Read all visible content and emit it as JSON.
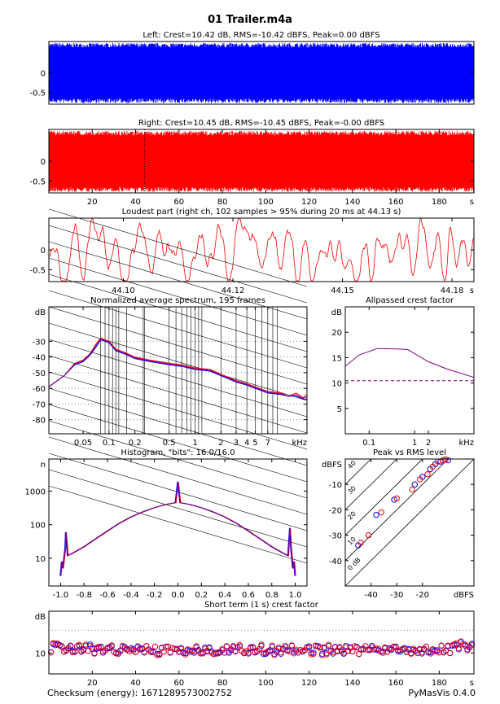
{
  "figure": {
    "title": "01 Trailer.m4a",
    "footer_left": "Checksum (energy): 1671289573002752",
    "footer_right": "PyMasVis 0.4.0"
  },
  "chart_data": [
    {
      "id": "left",
      "type": "area",
      "title": "Left: Crest=10.42 dB, RMS=-10.42 dBFS, Peak=0.00 dBFS",
      "color": "#0000ff",
      "y_ticks": [
        {
          "v": 0,
          "label": "0"
        },
        {
          "v": -0.5,
          "label": "-0.5"
        }
      ],
      "ylim": [
        -0.8,
        0.8
      ],
      "envelope": {
        "upper": 0.76,
        "lower": -0.77
      }
    },
    {
      "id": "right",
      "type": "area",
      "title": "Right: Crest=10.45 dB, RMS=-10.45 dBFS, Peak=-0.00 dBFS",
      "color": "#ff0000",
      "y_ticks": [
        {
          "v": 0,
          "label": "0"
        },
        {
          "v": -0.5,
          "label": "-0.5"
        }
      ],
      "ylim": [
        -0.8,
        0.8
      ],
      "xlim": [
        0,
        196
      ],
      "x_ticks": [
        "20",
        "40",
        "60",
        "80",
        "100",
        "120",
        "140",
        "160",
        "180"
      ],
      "x_tick_values": [
        20,
        40,
        60,
        80,
        100,
        120,
        140,
        160,
        180
      ],
      "x_unit": "s",
      "marker_x": 44.13,
      "envelope": {
        "upper": 0.76,
        "lower": -0.77
      }
    },
    {
      "id": "loudest",
      "type": "line",
      "title": "Loudest part (right ch, 102 samples > 95% during 20 ms at 44.13 s)",
      "color": "#ff0000",
      "y_ticks": [
        {
          "v": 0,
          "label": "0"
        },
        {
          "v": -0.5,
          "label": "-0.5"
        }
      ],
      "ylim": [
        -0.8,
        0.8
      ],
      "xlim": [
        44.083,
        44.18
      ],
      "x_ticks": [
        "44.10",
        "44.12",
        "44.15",
        "44.18"
      ],
      "x_tick_values": [
        44.1,
        44.125,
        44.15,
        44.175
      ],
      "x_unit": "s"
    },
    {
      "id": "spectrum",
      "type": "line",
      "title": "Normalized average spectrum, 195 frames",
      "y_unit": "dB",
      "y_ticks": [
        "-30",
        "-40",
        "-50",
        "-60",
        "-70",
        "-80"
      ],
      "y_tick_values": [
        -30,
        -40,
        -50,
        -60,
        -70,
        -80
      ],
      "ylim": [
        -89,
        -8
      ],
      "xscale": "log",
      "xlim": [
        0.02,
        20
      ],
      "x_ticks": [
        "0.05",
        "0.1",
        "0.2",
        "0.5",
        "1",
        "2",
        "3",
        "4",
        "5",
        "7"
      ],
      "x_tick_values": [
        0.05,
        0.1,
        0.2,
        0.5,
        1,
        2,
        3,
        4,
        5,
        7
      ],
      "x_unit": "kHz",
      "series": [
        {
          "color": "#ff0000",
          "points": [
            [
              0.02,
              -59
            ],
            [
              0.03,
              -52
            ],
            [
              0.04,
              -44
            ],
            [
              0.05,
              -42
            ],
            [
              0.06,
              -38
            ],
            [
              0.07,
              -32
            ],
            [
              0.08,
              -28
            ],
            [
              0.1,
              -30
            ],
            [
              0.12,
              -35
            ],
            [
              0.15,
              -37
            ],
            [
              0.2,
              -40
            ],
            [
              0.3,
              -42
            ],
            [
              0.5,
              -44
            ],
            [
              0.7,
              -45
            ],
            [
              1,
              -47
            ],
            [
              1.5,
              -48
            ],
            [
              2,
              -51
            ],
            [
              3,
              -55
            ],
            [
              4,
              -57
            ],
            [
              5,
              -59
            ],
            [
              7,
              -62
            ],
            [
              10,
              -63
            ],
            [
              12,
              -65
            ],
            [
              15,
              -63
            ],
            [
              18,
              -66
            ],
            [
              20,
              -64
            ]
          ]
        },
        {
          "color": "#0000ff",
          "points": [
            [
              0.02,
              -59
            ],
            [
              0.03,
              -52
            ],
            [
              0.04,
              -45
            ],
            [
              0.05,
              -43
            ],
            [
              0.06,
              -39
            ],
            [
              0.07,
              -34
            ],
            [
              0.08,
              -29
            ],
            [
              0.1,
              -31
            ],
            [
              0.12,
              -36
            ],
            [
              0.15,
              -38
            ],
            [
              0.2,
              -41
            ],
            [
              0.3,
              -43
            ],
            [
              0.5,
              -45
            ],
            [
              0.7,
              -46
            ],
            [
              1,
              -48
            ],
            [
              1.5,
              -49
            ],
            [
              2,
              -52
            ],
            [
              3,
              -56
            ],
            [
              4,
              -58
            ],
            [
              5,
              -60
            ],
            [
              7,
              -63
            ],
            [
              10,
              -64
            ],
            [
              12,
              -65
            ],
            [
              15,
              -65
            ],
            [
              18,
              -67
            ],
            [
              20,
              -67
            ]
          ]
        },
        {
          "color": "#800080",
          "points": [
            [
              0.02,
              -59
            ],
            [
              0.03,
              -52
            ],
            [
              0.04,
              -44.5
            ],
            [
              0.05,
              -42.5
            ],
            [
              0.06,
              -38.5
            ],
            [
              0.07,
              -33
            ],
            [
              0.08,
              -28.5
            ],
            [
              0.1,
              -30.5
            ],
            [
              0.12,
              -35.5
            ],
            [
              0.15,
              -37.5
            ],
            [
              0.2,
              -40.5
            ],
            [
              0.3,
              -42.5
            ],
            [
              0.5,
              -44.5
            ],
            [
              0.7,
              -45.5
            ],
            [
              1,
              -47.5
            ],
            [
              1.5,
              -48.5
            ],
            [
              2,
              -51.5
            ],
            [
              3,
              -55.5
            ],
            [
              4,
              -57.5
            ],
            [
              5,
              -59.5
            ],
            [
              7,
              -62.5
            ],
            [
              10,
              -63.5
            ],
            [
              12,
              -65
            ],
            [
              15,
              -64
            ],
            [
              18,
              -66.5
            ],
            [
              20,
              -65.5
            ]
          ]
        }
      ]
    },
    {
      "id": "allpass",
      "type": "line",
      "title": "Allpassed crest factor",
      "y_unit": "dB",
      "y_ticks": [
        "20",
        "15",
        "10",
        "5"
      ],
      "y_tick_values": [
        20,
        15,
        10,
        5
      ],
      "ylim": [
        0,
        25
      ],
      "xscale": "log",
      "xlim": [
        0.03,
        20
      ],
      "x_ticks": [
        "0.1",
        "1",
        "2"
      ],
      "x_tick_values": [
        0.1,
        1,
        2
      ],
      "x_unit": "kHz",
      "reference": 10.45,
      "series": [
        {
          "color": "#800080",
          "points": [
            [
              0.03,
              13.3
            ],
            [
              0.06,
              15.5
            ],
            [
              0.15,
              16.8
            ],
            [
              0.4,
              16.7
            ],
            [
              0.7,
              16.6
            ],
            [
              2,
              14.2
            ],
            [
              5,
              12.8
            ],
            [
              20,
              11.1
            ]
          ]
        }
      ]
    },
    {
      "id": "histogram",
      "type": "line",
      "title": "Histogram, \"bits\": 16.0/16.0",
      "y_unit": "n",
      "yscale": "log",
      "y_ticks": [
        "1000",
        "100",
        "10"
      ],
      "y_tick_values": [
        1000,
        100,
        10
      ],
      "ylim": [
        1.5,
        9000
      ],
      "xlim": [
        -1.1,
        1.1
      ],
      "x_ticks": [
        "-1.0",
        "-0.8",
        "-0.6",
        "-0.4",
        "-0.2",
        "0.0",
        "0.2",
        "0.4",
        "0.6",
        "0.8",
        "1.0"
      ],
      "x_tick_values": [
        -1.0,
        -0.8,
        -0.6,
        -0.4,
        -0.2,
        0.0,
        0.2,
        0.4,
        0.6,
        0.8,
        1.0
      ],
      "series": [
        {
          "color": "#800080",
          "points": [
            [
              -1.0,
              3
            ],
            [
              -0.99,
              8
            ],
            [
              -0.98,
              5
            ],
            [
              -0.96,
              20
            ],
            [
              -0.955,
              60
            ],
            [
              -0.945,
              25
            ],
            [
              -0.94,
              12
            ],
            [
              -0.9,
              14
            ],
            [
              -0.8,
              22
            ],
            [
              -0.7,
              38
            ],
            [
              -0.6,
              65
            ],
            [
              -0.5,
              110
            ],
            [
              -0.4,
              170
            ],
            [
              -0.3,
              240
            ],
            [
              -0.2,
              320
            ],
            [
              -0.1,
              400
            ],
            [
              -0.02,
              450
            ],
            [
              0,
              1900
            ],
            [
              0.02,
              450
            ],
            [
              0.1,
              400
            ],
            [
              0.2,
              320
            ],
            [
              0.3,
              240
            ],
            [
              0.4,
              170
            ],
            [
              0.5,
              110
            ],
            [
              0.6,
              65
            ],
            [
              0.7,
              38
            ],
            [
              0.8,
              22
            ],
            [
              0.9,
              14
            ],
            [
              0.94,
              12
            ],
            [
              0.945,
              25
            ],
            [
              0.955,
              80
            ],
            [
              0.965,
              20
            ],
            [
              0.98,
              5
            ],
            [
              0.99,
              8
            ],
            [
              1.0,
              3
            ]
          ]
        }
      ]
    },
    {
      "id": "peak_rms",
      "type": "scatter",
      "title": "Peak vs RMS level",
      "y_unit": "dBFS",
      "y_ticks": [
        "-10",
        "-20",
        "-30",
        "-40"
      ],
      "y_tick_values": [
        -10,
        -20,
        -30,
        -40
      ],
      "ylim": [
        -50,
        0
      ],
      "xlim": [
        -50,
        0
      ],
      "x_ticks": [
        "-40",
        "-30",
        "-20"
      ],
      "x_tick_values": [
        -40,
        -30,
        -20
      ],
      "x_unit": "dBFS",
      "diagonal_labels": [
        "40",
        "30",
        "20",
        "10",
        "0 dB"
      ],
      "diagonal_values": [
        40,
        30,
        20,
        10,
        0
      ],
      "series": [
        {
          "color": "#0000ff",
          "points": [
            [
              -45,
              -34
            ],
            [
              -38,
              -22
            ],
            [
              -31,
              -16
            ],
            [
              -23,
              -10
            ],
            [
              -20,
              -7
            ],
            [
              -17,
              -4
            ],
            [
              -15,
              -2
            ],
            [
              -13,
              -1
            ],
            [
              -10,
              -0.5
            ]
          ]
        },
        {
          "color": "#ff0000",
          "points": [
            [
              -44,
              -33
            ],
            [
              -41,
              -30
            ],
            [
              -36,
              -21
            ],
            [
              -30,
              -15.5
            ],
            [
              -24,
              -12
            ],
            [
              -21,
              -8
            ],
            [
              -18,
              -6
            ],
            [
              -16,
              -3
            ],
            [
              -14,
              -1
            ],
            [
              -12,
              -0.5
            ],
            [
              -11,
              -0.2
            ]
          ]
        }
      ]
    },
    {
      "id": "short_crest",
      "type": "scatter",
      "title": "Short term (1 s) crest factor",
      "y_unit": "dB",
      "y_ticks": [
        "10"
      ],
      "y_tick_values": [
        10
      ],
      "ylim": [
        4.5,
        21
      ],
      "xlim": [
        0,
        196
      ],
      "x_ticks": [
        "20",
        "40",
        "60",
        "80",
        "100",
        "120",
        "140",
        "160",
        "180"
      ],
      "x_tick_values": [
        20,
        40,
        60,
        80,
        100,
        120,
        140,
        160,
        180
      ],
      "x_unit": "s",
      "reference": 16
    }
  ]
}
